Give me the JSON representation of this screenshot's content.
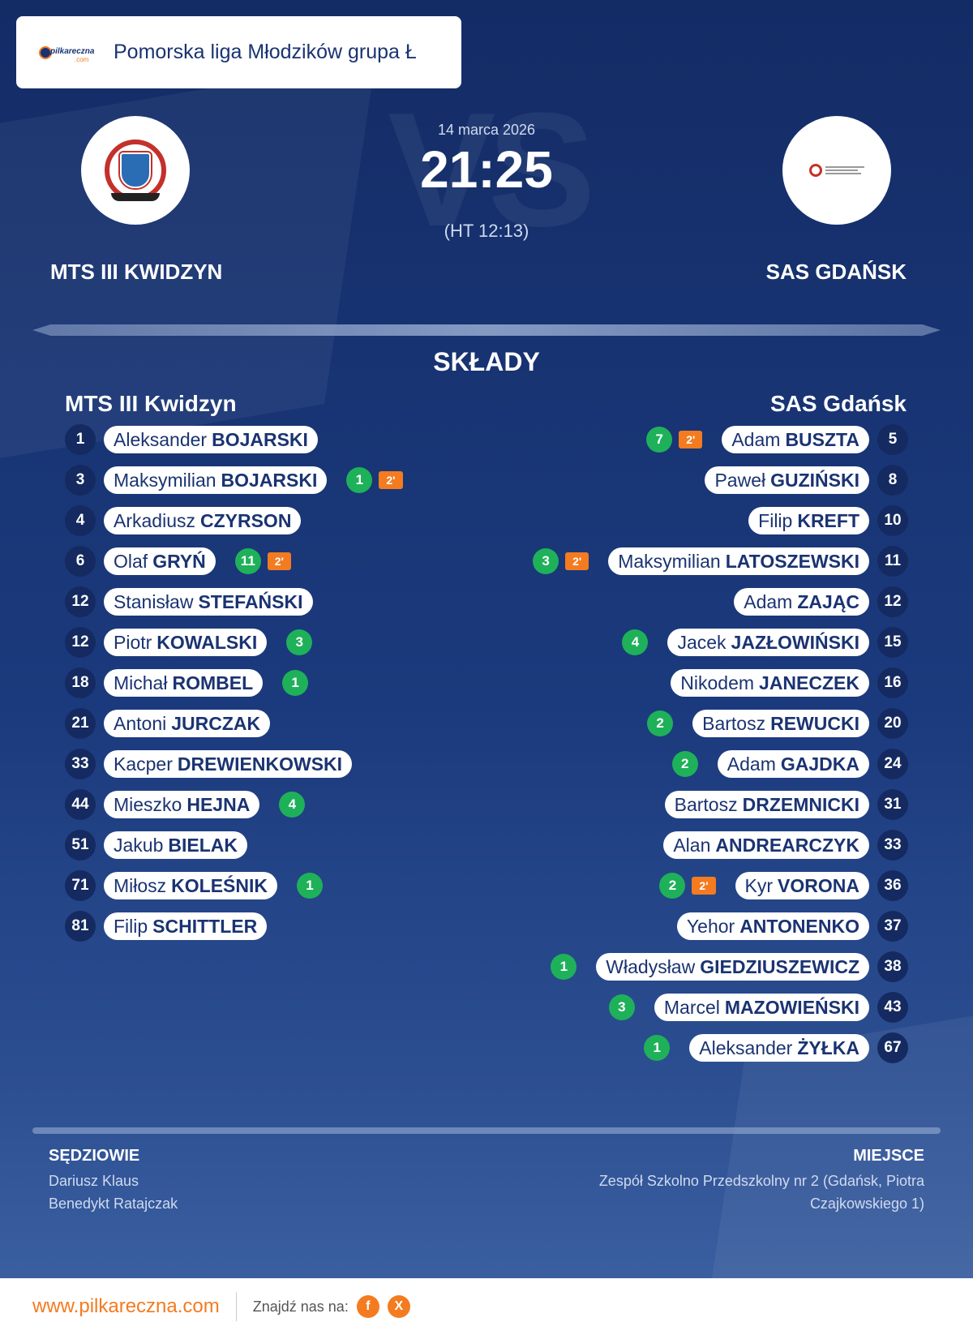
{
  "league": {
    "title": "Pomorska liga Młodzików grupa Ł",
    "logo_text": "pilkareczna",
    "logo_sub": ".com"
  },
  "match": {
    "date": "14 marca 2026",
    "score": "21:25",
    "halftime": "(HT 12:13)",
    "vs_text": "VS"
  },
  "home": {
    "name": "MTS III KWIDZYN",
    "lineup_title": "MTS III Kwidzyn"
  },
  "away": {
    "name": "SAS GDAŃSK",
    "lineup_title": "SAS Gdańsk"
  },
  "section_title": "SKŁADY",
  "home_players": [
    {
      "num": "1",
      "first": "Aleksander",
      "last": "BOJARSKI",
      "goals": "",
      "susp": ""
    },
    {
      "num": "3",
      "first": "Maksymilian",
      "last": "BOJARSKI",
      "goals": "1",
      "susp": "2'"
    },
    {
      "num": "4",
      "first": "Arkadiusz",
      "last": "CZYRSON",
      "goals": "",
      "susp": ""
    },
    {
      "num": "6",
      "first": "Olaf",
      "last": "GRYŃ",
      "goals": "11",
      "susp": "2'"
    },
    {
      "num": "12",
      "first": "Stanisław",
      "last": "STEFAŃSKI",
      "goals": "",
      "susp": ""
    },
    {
      "num": "12",
      "first": "Piotr",
      "last": "KOWALSKI",
      "goals": "3",
      "susp": ""
    },
    {
      "num": "18",
      "first": "Michał",
      "last": "ROMBEL",
      "goals": "1",
      "susp": ""
    },
    {
      "num": "21",
      "first": "Antoni",
      "last": "JURCZAK",
      "goals": "",
      "susp": ""
    },
    {
      "num": "33",
      "first": "Kacper",
      "last": "DREWIENKOWSKI",
      "goals": "",
      "susp": ""
    },
    {
      "num": "44",
      "first": "Mieszko",
      "last": "HEJNA",
      "goals": "4",
      "susp": ""
    },
    {
      "num": "51",
      "first": "Jakub",
      "last": "BIELAK",
      "goals": "",
      "susp": ""
    },
    {
      "num": "71",
      "first": "Miłosz",
      "last": "KOLEŚNIK",
      "goals": "1",
      "susp": ""
    },
    {
      "num": "81",
      "first": "Filip",
      "last": "SCHITTLER",
      "goals": "",
      "susp": ""
    }
  ],
  "away_players": [
    {
      "num": "5",
      "first": "Adam",
      "last": "BUSZTA",
      "goals": "7",
      "susp": "2'"
    },
    {
      "num": "8",
      "first": "Paweł",
      "last": "GUZIŃSKI",
      "goals": "",
      "susp": ""
    },
    {
      "num": "10",
      "first": "Filip",
      "last": "KREFT",
      "goals": "",
      "susp": ""
    },
    {
      "num": "11",
      "first": "Maksymilian",
      "last": "LATOSZEWSKI",
      "goals": "3",
      "susp": "2'"
    },
    {
      "num": "12",
      "first": "Adam",
      "last": "ZAJĄC",
      "goals": "",
      "susp": ""
    },
    {
      "num": "15",
      "first": "Jacek",
      "last": "JAZŁOWIŃSKI",
      "goals": "4",
      "susp": ""
    },
    {
      "num": "16",
      "first": "Nikodem",
      "last": "JANECZEK",
      "goals": "",
      "susp": ""
    },
    {
      "num": "20",
      "first": "Bartosz",
      "last": "REWUCKI",
      "goals": "2",
      "susp": ""
    },
    {
      "num": "24",
      "first": "Adam",
      "last": "GAJDKA",
      "goals": "2",
      "susp": ""
    },
    {
      "num": "31",
      "first": "Bartosz",
      "last": "DRZEMNICKI",
      "goals": "",
      "susp": ""
    },
    {
      "num": "33",
      "first": "Alan",
      "last": "ANDREARCZYK",
      "goals": "",
      "susp": ""
    },
    {
      "num": "36",
      "first": "Kyr",
      "last": "VORONA",
      "goals": "2",
      "susp": "2'"
    },
    {
      "num": "37",
      "first": "Yehor",
      "last": "ANTONENKO",
      "goals": "",
      "susp": ""
    },
    {
      "num": "38",
      "first": "Władysław",
      "last": "GIEDZIUSZEWICZ",
      "goals": "1",
      "susp": ""
    },
    {
      "num": "43",
      "first": "Marcel",
      "last": "MAZOWIEŃSKI",
      "goals": "3",
      "susp": ""
    },
    {
      "num": "67",
      "first": "Aleksander",
      "last": "ŻYŁKA",
      "goals": "1",
      "susp": ""
    }
  ],
  "referees": {
    "title": "SĘDZIOWIE",
    "names": [
      "Dariusz Klaus",
      "Benedykt Ratajczak"
    ]
  },
  "venue": {
    "title": "MIEJSCE",
    "lines": [
      "Zespół Szkolno Przedszkolny nr 2 (Gdańsk, Piotra",
      "Czajkowskiego 1)"
    ]
  },
  "footer": {
    "url": "www.pilkareczna.com",
    "find_us": "Znajdź nas na:",
    "social": [
      "f",
      "X"
    ]
  },
  "colors": {
    "goal": "#1eb15a",
    "suspension": "#f47b20",
    "accent": "#f47b20",
    "background": "#1a3372"
  }
}
